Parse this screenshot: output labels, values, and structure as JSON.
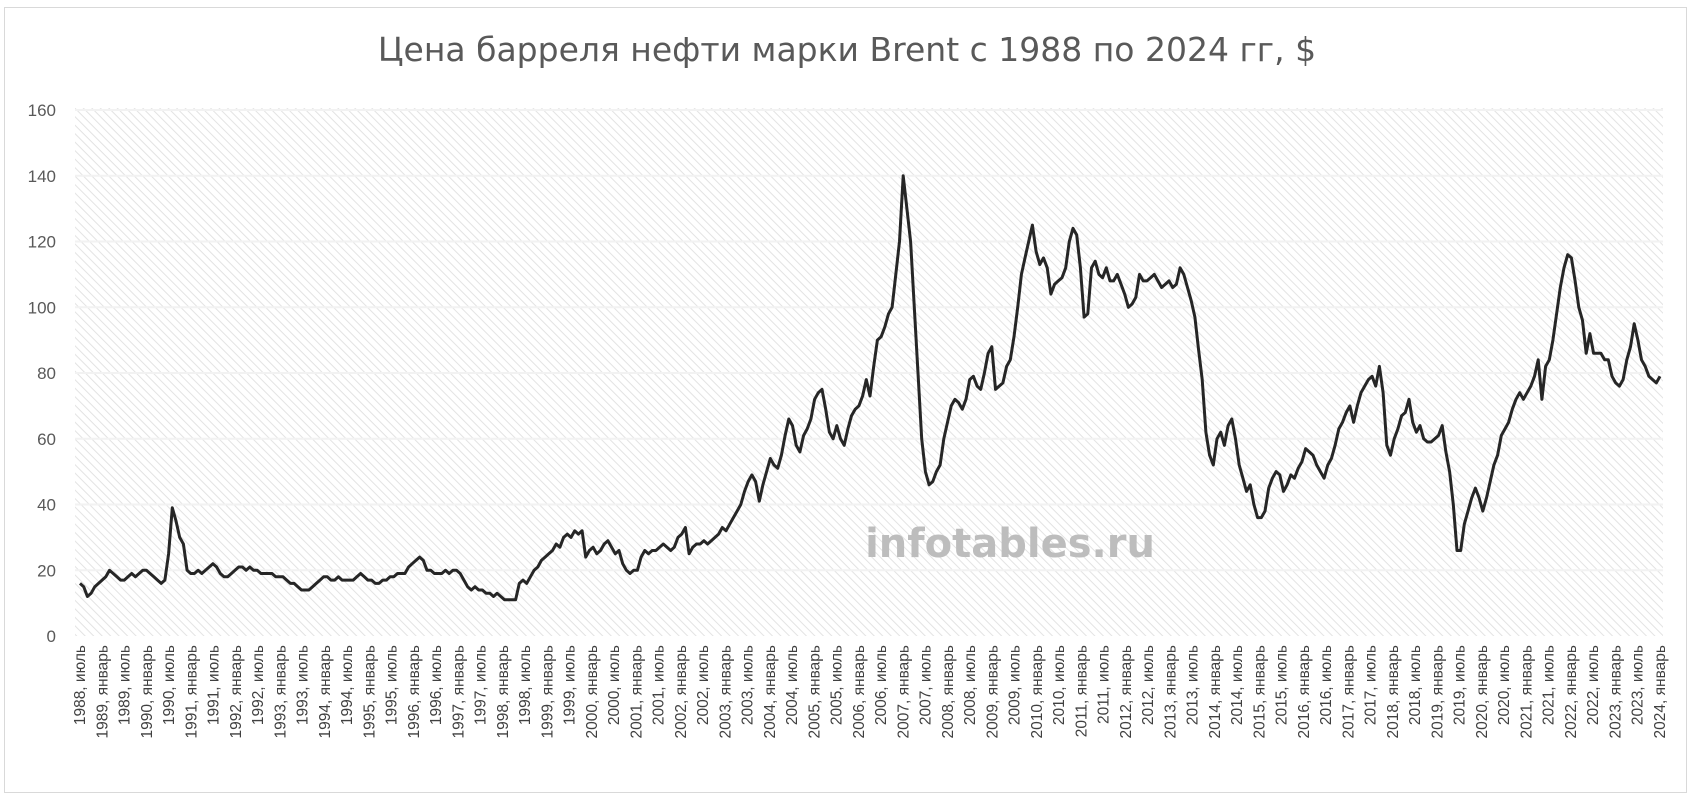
{
  "chart_data": {
    "type": "line",
    "title": "Цена барреля нефти марки Brent с 1988 по 2024 гг, $",
    "xlabel": "",
    "ylabel": "",
    "ylim": [
      0,
      160
    ],
    "yticks": [
      0,
      20,
      40,
      60,
      80,
      100,
      120,
      140,
      160
    ],
    "grid": true,
    "legend": "none",
    "watermark": "infotables.ru",
    "line_color": "#262626",
    "x_tick_labels": [
      "1988, июль",
      "1989, январь",
      "1989, июль",
      "1990, январь",
      "1990, июль",
      "1991, январь",
      "1991, июль",
      "1992, январь",
      "1992, июль",
      "1993, январь",
      "1993, июль",
      "1994, январь",
      "1994, июль",
      "1995, январь",
      "1995, июль",
      "1996, январь",
      "1996, июль",
      "1997, январь",
      "1997, июль",
      "1998, январь",
      "1998, июль",
      "1999, январь",
      "1999, июль",
      "2000, январь",
      "2000, июль",
      "2001, январь",
      "2001, июль",
      "2002, январь",
      "2002, июль",
      "2003, январь",
      "2003, июль",
      "2004, январь",
      "2004, июль",
      "2005, январь",
      "2005, июль",
      "2006, январь",
      "2006, июль",
      "2007, январь",
      "2007, июль",
      "2008, январь",
      "2008, июль",
      "2009, январь",
      "2009, июль",
      "2010, январь",
      "2010, июль",
      "2011, январь",
      "2011, июль",
      "2012, январь",
      "2012, июль",
      "2013, январь",
      "2013, июль",
      "2014, январь",
      "2014, июль",
      "2015, январь",
      "2015, июль",
      "2016, январь",
      "2016, июль",
      "2017, январь",
      "2017, июль",
      "2018, январь",
      "2018, июль",
      "2019, январь",
      "2019, июль",
      "2020, январь",
      "2020, июль",
      "2021, январь",
      "2021, июль",
      "2022, январь",
      "2022, июль",
      "2023, январь",
      "2023, июль",
      "2024, январь"
    ],
    "series": [
      {
        "values": [
          16,
          15,
          12,
          13,
          15,
          16,
          17,
          18,
          20,
          19,
          18,
          17,
          17,
          18,
          19,
          18,
          19,
          20,
          20,
          19,
          18,
          17,
          16,
          17,
          25,
          39,
          35,
          30,
          28,
          20,
          19,
          19,
          20,
          19,
          20,
          21,
          22,
          21,
          19,
          18,
          18,
          19,
          20,
          21,
          21,
          20,
          21,
          20,
          20,
          19,
          19,
          19,
          19,
          18,
          18,
          18,
          17,
          16,
          16,
          15,
          14,
          14,
          14,
          15,
          16,
          17,
          18,
          18,
          17,
          17,
          18,
          17,
          17,
          17,
          17,
          18,
          19,
          18,
          17,
          17,
          16,
          16,
          17,
          17,
          18,
          18,
          19,
          19,
          19,
          21,
          22,
          23,
          24,
          23,
          20,
          20,
          19,
          19,
          19,
          20,
          19,
          20,
          20,
          19,
          17,
          15,
          14,
          15,
          14,
          14,
          13,
          13,
          12,
          13,
          12,
          11,
          11,
          11,
          11,
          16,
          17,
          16,
          18,
          20,
          21,
          23,
          24,
          25,
          26,
          28,
          27,
          30,
          31,
          30,
          32,
          31,
          32,
          24,
          26,
          27,
          25,
          26,
          28,
          29,
          27,
          25,
          26,
          22,
          20,
          19,
          20,
          20,
          24,
          26,
          25,
          26,
          26,
          27,
          28,
          27,
          26,
          27,
          30,
          31,
          33,
          25,
          27,
          28,
          28,
          29,
          28,
          29,
          30,
          31,
          33,
          32,
          34,
          36,
          38,
          40,
          44,
          47,
          49,
          47,
          41,
          46,
          50,
          54,
          52,
          51,
          55,
          61,
          66,
          64,
          58,
          56,
          61,
          63,
          66,
          72,
          74,
          75,
          69,
          62,
          60,
          64,
          60,
          58,
          63,
          67,
          69,
          70,
          73,
          78,
          73,
          82,
          90,
          91,
          94,
          98,
          100,
          110,
          120,
          140,
          130,
          120,
          100,
          80,
          60,
          50,
          46,
          47,
          50,
          52,
          60,
          65,
          70,
          72,
          71,
          69,
          72,
          78,
          79,
          76,
          75,
          80,
          86,
          88,
          75,
          76,
          77,
          82,
          84,
          91,
          100,
          110,
          115,
          120,
          125,
          117,
          113,
          115,
          112,
          104,
          107,
          108,
          109,
          112,
          120,
          124,
          122,
          112,
          97,
          98,
          112,
          114,
          110,
          109,
          112,
          108,
          108,
          110,
          107,
          104,
          100,
          101,
          103,
          110,
          108,
          108,
          109,
          110,
          108,
          106,
          107,
          108,
          106,
          107,
          112,
          110,
          106,
          102,
          97,
          87,
          78,
          62,
          55,
          52,
          60,
          62,
          58,
          64,
          66,
          60,
          52,
          48,
          44,
          46,
          40,
          36,
          36,
          38,
          45,
          48,
          50,
          49,
          44,
          46,
          49,
          48,
          51,
          53,
          57,
          56,
          55,
          52,
          50,
          48,
          52,
          54,
          58,
          63,
          65,
          68,
          70,
          65,
          70,
          74,
          76,
          78,
          79,
          76,
          82,
          74,
          58,
          55,
          60,
          63,
          67,
          68,
          72,
          65,
          62,
          64,
          60,
          59,
          59,
          60,
          61,
          64,
          56,
          50,
          40,
          26,
          26,
          34,
          38,
          42,
          45,
          42,
          38,
          42,
          47,
          52,
          55,
          61,
          63,
          65,
          69,
          72,
          74,
          72,
          74,
          76,
          79,
          84,
          72,
          82,
          84,
          90,
          98,
          106,
          112,
          116,
          115,
          108,
          100,
          96,
          86,
          92,
          86,
          86,
          86,
          84,
          84,
          79,
          77,
          76,
          78,
          84,
          88,
          95,
          90,
          84,
          82,
          79,
          78,
          77,
          79
        ]
      }
    ]
  }
}
